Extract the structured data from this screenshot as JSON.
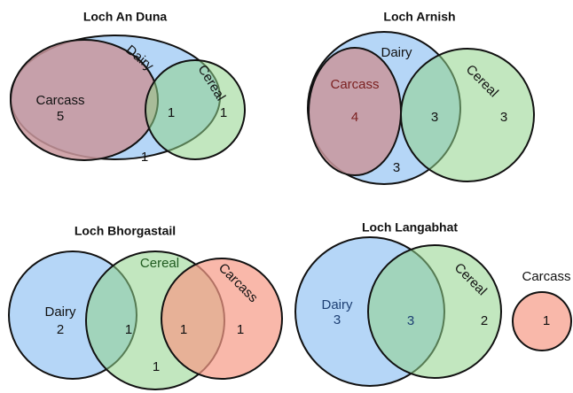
{
  "panels": [
    {
      "title": "Loch An Duna",
      "set_labels": {
        "dairy": "Dairy",
        "cereal": "Cereal",
        "carcass": "Carcass"
      },
      "counts": [
        5,
        1,
        1,
        1
      ]
    },
    {
      "title": "Loch Arnish",
      "set_labels": {
        "dairy": "Dairy",
        "cereal": "Cereal",
        "carcass": "Carcass"
      },
      "counts": [
        4,
        3,
        3,
        3
      ]
    },
    {
      "title": "Loch Bhorgastail",
      "set_labels": {
        "dairy": "Dairy",
        "cereal": "Cereal",
        "carcass": "Carcass"
      },
      "counts": [
        2,
        1,
        1,
        1,
        1
      ]
    },
    {
      "title": "Loch Langabhat",
      "set_labels": {
        "dairy": "Dairy",
        "cereal": "Cereal",
        "carcass": "Carcass"
      },
      "counts": [
        3,
        3,
        2,
        1
      ]
    }
  ]
}
